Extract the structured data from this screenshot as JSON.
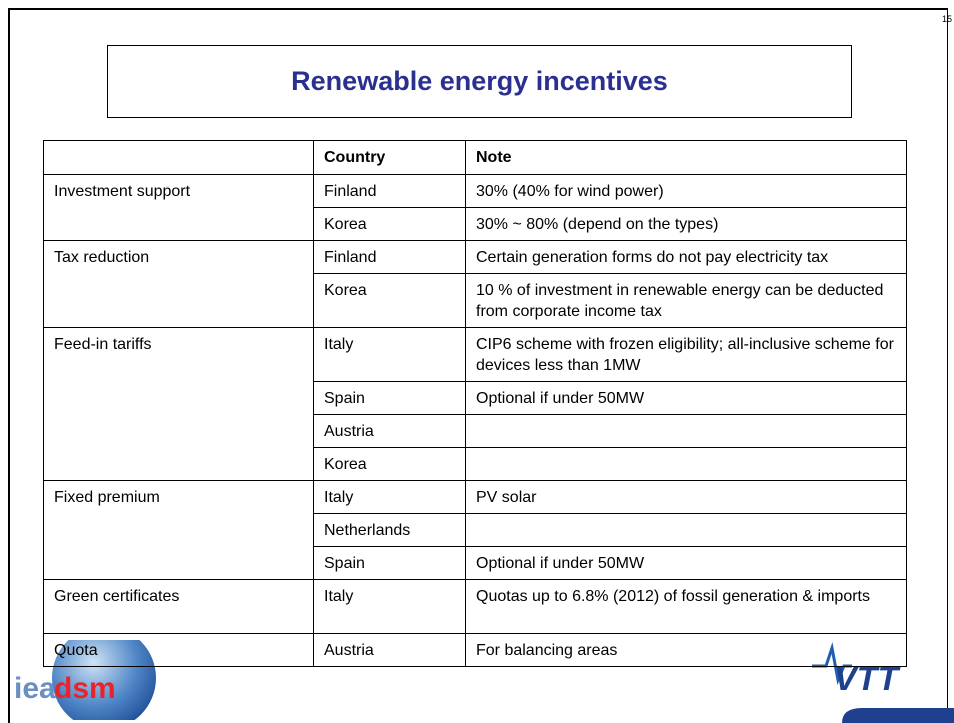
{
  "page_number": "15",
  "title": "Renewable energy incentives",
  "table": {
    "header": [
      "Country",
      "Note"
    ],
    "groups": [
      {
        "label": "Investment support",
        "rows": [
          {
            "country": "Finland",
            "note": "30% (40% for wind power)"
          },
          {
            "country": "Korea",
            "note": "30% ~ 80% (depend on the types)"
          }
        ]
      },
      {
        "label": "Tax reduction",
        "rows": [
          {
            "country": "Finland",
            "note": "Certain generation forms do not pay electricity tax"
          },
          {
            "country": "Korea",
            "note": "10 % of investment in renewable energy can be deducted from corporate income tax"
          }
        ]
      },
      {
        "label": "Feed-in tariffs",
        "rows": [
          {
            "country": "Italy",
            "note": "CIP6 scheme with frozen eligibility; all-inclusive scheme for devices less than 1MW"
          },
          {
            "country": "Spain",
            "note": "Optional if under 50MW"
          },
          {
            "country": "Austria"
          },
          {
            "country": "Korea"
          }
        ]
      },
      {
        "label": "Fixed premium",
        "rows": [
          {
            "country": "Italy",
            "note": "PV solar"
          },
          {
            "country": "Netherlands"
          },
          {
            "country": "Spain",
            "note": "Optional if under 50MW"
          }
        ]
      },
      {
        "label": "Green certificates",
        "rows": [
          {
            "country": "Italy",
            "note": "Quotas up to 6.8% (2012) of fossil generation & imports"
          }
        ]
      },
      {
        "label": "Quota",
        "rows": [
          {
            "country": "Austria",
            "note": "For balancing areas"
          }
        ]
      }
    ]
  },
  "logos": {
    "left_a": "iea",
    "left_b": "dsm",
    "right": "VTT"
  }
}
